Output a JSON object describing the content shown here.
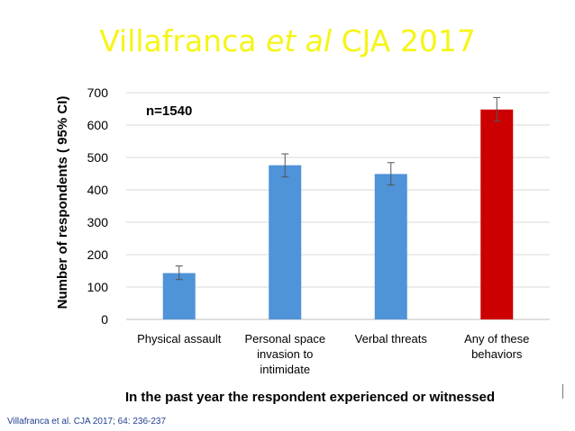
{
  "slide": {
    "title_main": "Villafranca ",
    "title_italic": "et al",
    "title_tail": " CJA 2017",
    "title_color": "#f5f518",
    "citation": "Villafranca et al. CJA 2017; 64: 236-237"
  },
  "chart_data": {
    "type": "bar",
    "categories": [
      [
        "Physical assault"
      ],
      [
        "Personal space",
        "invasion to",
        "intimidate"
      ],
      [
        "Verbal threats"
      ],
      [
        "Any of these",
        "behaviors"
      ]
    ],
    "values": [
      143,
      476,
      449,
      648
    ],
    "ci_lower": [
      123,
      440,
      415,
      612
    ],
    "ci_upper": [
      165,
      511,
      484,
      685
    ],
    "bar_colors": [
      "#4f93d8",
      "#4f93d8",
      "#4f93d8",
      "#cc0000"
    ],
    "ylabel": "Number of respondents ( 95% CI)",
    "xlabel": "In the past year the respondent experienced or witnessed",
    "ylim": [
      0,
      700
    ],
    "yticks": [
      0,
      100,
      200,
      300,
      400,
      500,
      600,
      700
    ],
    "annotation": "n=1540",
    "grid": true
  }
}
